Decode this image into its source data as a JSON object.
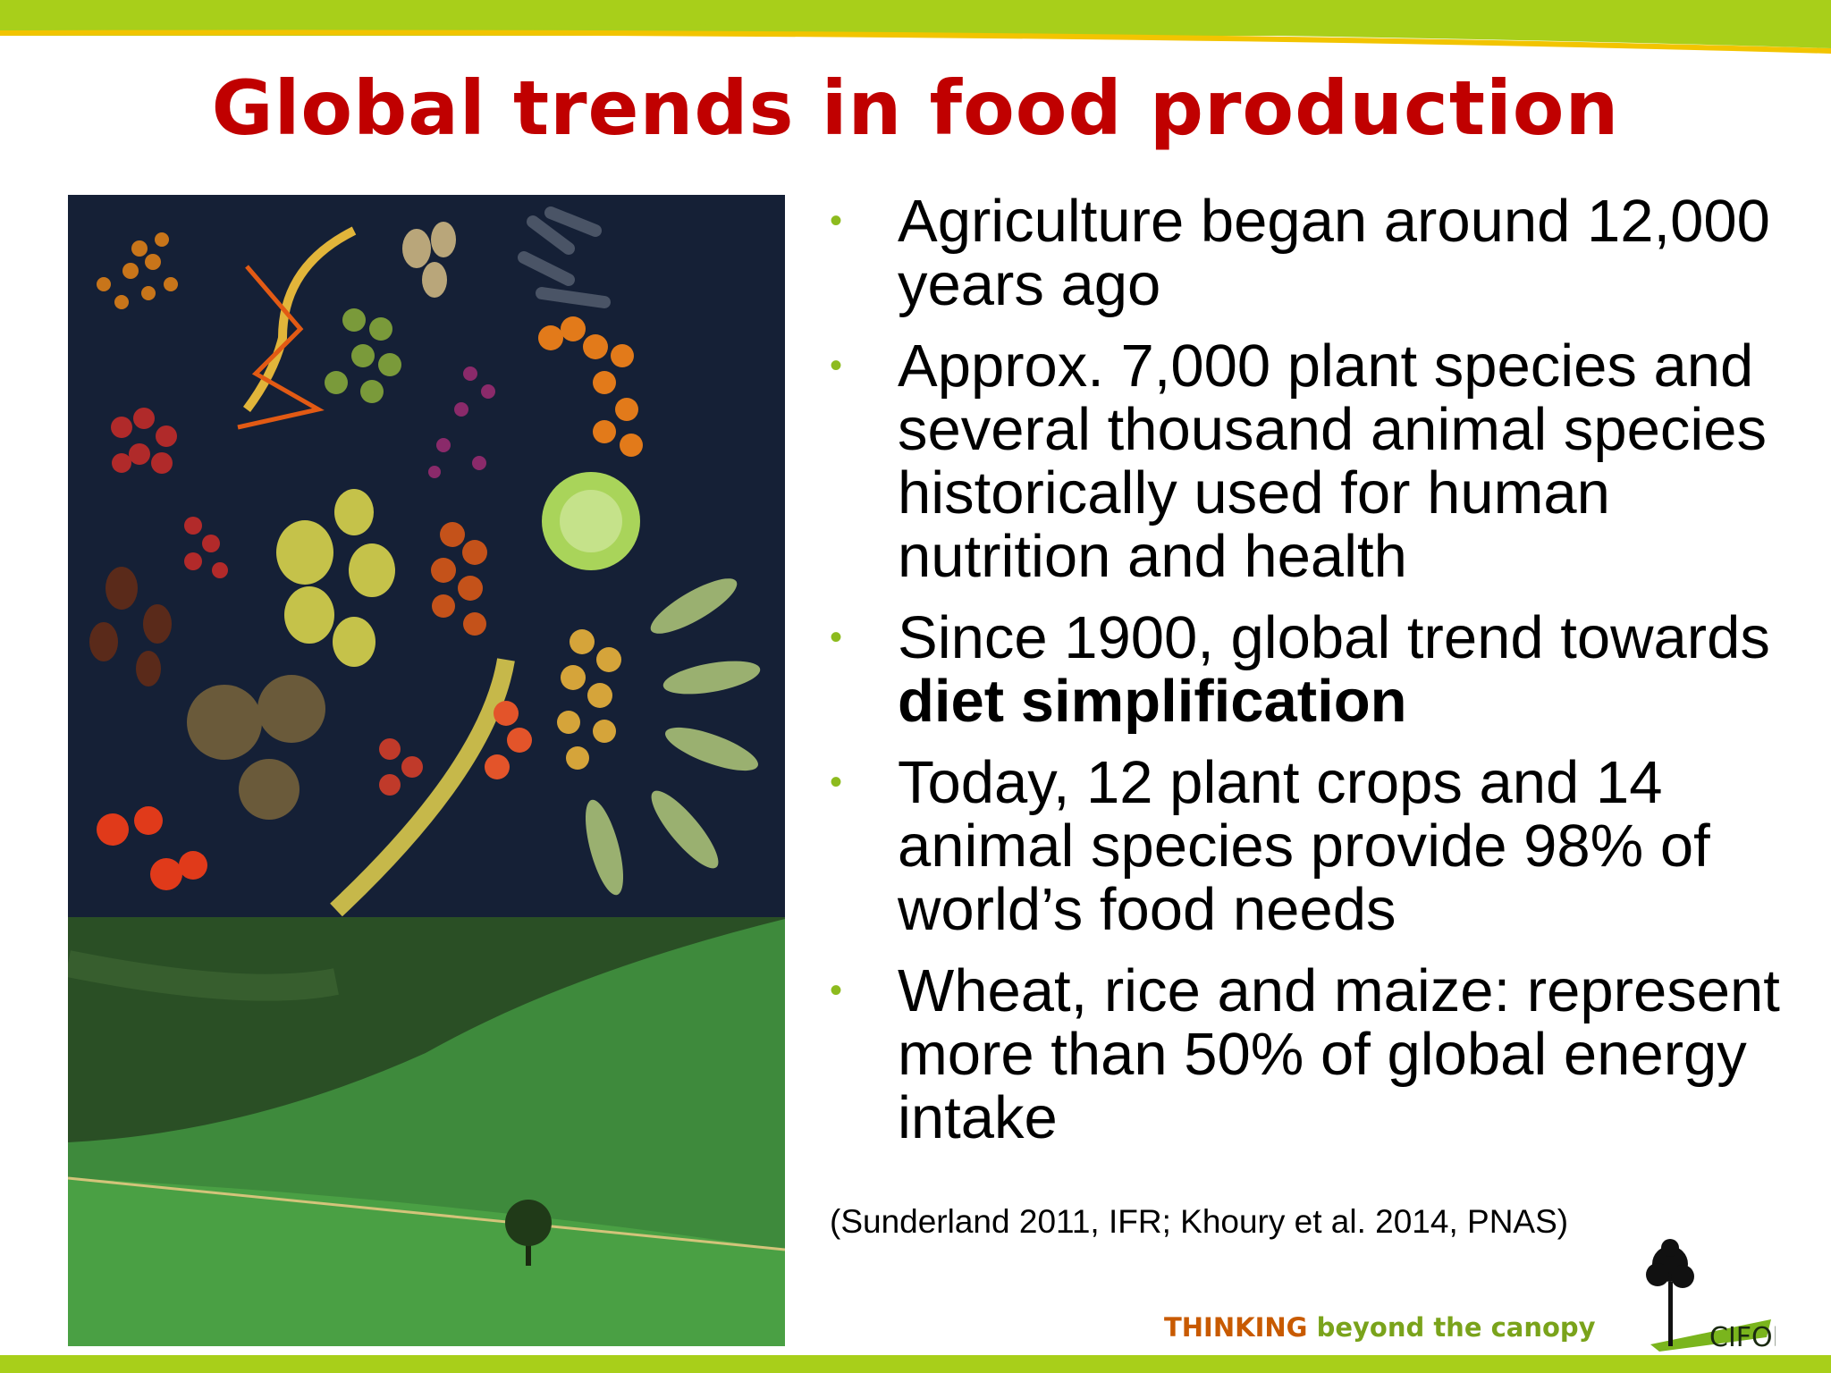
{
  "slide": {
    "title": "Global trends in food production",
    "bullets": [
      {
        "text": "Agriculture began around 12,000 years ago"
      },
      {
        "text": "Approx. 7,000 plant species and several thousand animal species historically used for human nutrition and health"
      },
      {
        "text_before": "Since 1900, global trend towards ",
        "bold": "diet simplification"
      },
      {
        "text": "Today, 12 plant crops and 14 animal species provide 98% of world’s food needs"
      },
      {
        "text": "Wheat, rice and maize: represent more than 50% of global energy intake"
      }
    ],
    "citation": "(Sunderland 2011, IFR; Khoury et al. 2014, PNAS)",
    "bullet_glyph": "•"
  },
  "footer": {
    "tagline_part1": "THINKING",
    "tagline_part2": "beyond the canopy",
    "logo_text": "CIFOR"
  },
  "colors": {
    "title": "#c00000",
    "bullet": "#8dbb1e",
    "bar_green": "#a8cf1a",
    "bar_yellow": "#f2c400"
  }
}
